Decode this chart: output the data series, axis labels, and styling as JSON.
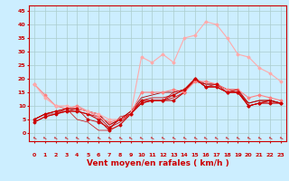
{
  "bg_color": "#cceeff",
  "grid_color": "#aacccc",
  "xlabel": "Vent moyen/en rafales ( km/h )",
  "xlabel_color": "#cc0000",
  "xlabel_fontsize": 6.5,
  "xtick_color": "#cc0000",
  "ytick_color": "#cc0000",
  "yticks": [
    0,
    5,
    10,
    15,
    20,
    25,
    30,
    35,
    40,
    45
  ],
  "xticks": [
    0,
    1,
    2,
    3,
    4,
    5,
    6,
    7,
    8,
    9,
    10,
    11,
    12,
    13,
    14,
    15,
    16,
    17,
    18,
    19,
    20,
    21,
    22,
    23
  ],
  "xlim": [
    -0.5,
    23.5
  ],
  "ylim": [
    -3,
    47
  ],
  "series": [
    {
      "x": [
        0,
        1,
        2,
        3,
        4,
        5,
        6,
        7,
        8,
        9,
        10,
        11,
        12,
        13,
        14,
        15,
        16,
        17,
        18,
        19,
        20,
        21,
        22,
        23
      ],
      "y": [
        4,
        6,
        7,
        8,
        8,
        7,
        5,
        1,
        3,
        7,
        11,
        12,
        12,
        12,
        15,
        20,
        17,
        17,
        15,
        15,
        10,
        11,
        12,
        11
      ],
      "color": "#cc0000",
      "marker": "D",
      "markersize": 1.5,
      "linewidth": 0.8
    },
    {
      "x": [
        0,
        1,
        2,
        3,
        4,
        5,
        6,
        7,
        8,
        9,
        10,
        11,
        12,
        13,
        14,
        15,
        16,
        17,
        18,
        19,
        20,
        21,
        22,
        23
      ],
      "y": [
        5,
        7,
        7,
        8,
        8,
        7,
        6,
        2,
        4,
        7,
        11,
        12,
        12,
        13,
        15,
        20,
        17,
        17,
        15,
        15,
        10,
        11,
        12,
        11
      ],
      "color": "#cc0000",
      "marker": null,
      "markersize": 1.5,
      "linewidth": 0.6
    },
    {
      "x": [
        0,
        1,
        2,
        3,
        4,
        5,
        6,
        7,
        8,
        9,
        10,
        11,
        12,
        13,
        14,
        15,
        16,
        17,
        18,
        19,
        20,
        21,
        22,
        23
      ],
      "y": [
        5,
        7,
        8,
        8,
        9,
        8,
        7,
        3,
        5,
        8,
        12,
        13,
        13,
        14,
        16,
        20,
        18,
        18,
        16,
        15,
        11,
        12,
        12,
        11
      ],
      "color": "#cc0000",
      "marker": null,
      "markersize": 1.5,
      "linewidth": 0.6
    },
    {
      "x": [
        0,
        1,
        2,
        3,
        4,
        5,
        6,
        7,
        8,
        9,
        10,
        11,
        12,
        13,
        14,
        15,
        16,
        17,
        18,
        19,
        20,
        21,
        22,
        23
      ],
      "y": [
        5,
        7,
        8,
        9,
        9,
        8,
        7,
        3,
        5,
        8,
        13,
        14,
        15,
        15,
        16,
        19,
        18,
        18,
        16,
        16,
        11,
        12,
        12,
        11
      ],
      "color": "#aa0000",
      "marker": null,
      "markersize": 1.5,
      "linewidth": 0.6
    },
    {
      "x": [
        0,
        1,
        2,
        3,
        4,
        5,
        6,
        7,
        8,
        9,
        10,
        11,
        12,
        13,
        14,
        15,
        16,
        17,
        18,
        19,
        20,
        21,
        22,
        23
      ],
      "y": [
        18,
        14,
        10,
        9,
        10,
        8,
        6,
        4,
        5,
        7,
        15,
        15,
        15,
        16,
        15,
        19,
        19,
        18,
        16,
        16,
        13,
        14,
        13,
        12
      ],
      "color": "#ff8080",
      "marker": "D",
      "markersize": 1.5,
      "linewidth": 0.8
    },
    {
      "x": [
        0,
        1,
        2,
        3,
        4,
        5,
        6,
        7,
        8,
        9,
        10,
        11,
        12,
        13,
        14,
        15,
        16,
        17,
        18,
        19,
        20,
        21,
        22,
        23
      ],
      "y": [
        18,
        13,
        10,
        10,
        9,
        8,
        7,
        5,
        5,
        7,
        28,
        26,
        29,
        26,
        35,
        36,
        41,
        40,
        35,
        29,
        28,
        24,
        22,
        19
      ],
      "color": "#ffaaaa",
      "marker": "D",
      "markersize": 1.5,
      "linewidth": 0.8
    },
    {
      "x": [
        0,
        1,
        2,
        3,
        4,
        5,
        6,
        7,
        8,
        9,
        10,
        11,
        12,
        13,
        14,
        15,
        16,
        17,
        18,
        19,
        20,
        21,
        22,
        23
      ],
      "y": [
        5,
        7,
        8,
        9,
        9,
        5,
        4,
        2,
        5,
        7,
        12,
        12,
        12,
        14,
        16,
        20,
        17,
        18,
        15,
        15,
        10,
        11,
        11,
        11
      ],
      "color": "#cc0000",
      "marker": "D",
      "markersize": 1.5,
      "linewidth": 0.6
    },
    {
      "x": [
        0,
        1,
        2,
        3,
        4,
        5,
        6,
        7,
        8,
        9,
        10,
        11,
        12,
        13,
        14,
        15,
        16,
        17,
        18,
        19,
        20,
        21,
        22,
        23
      ],
      "y": [
        4,
        6,
        7,
        9,
        5,
        4,
        1,
        1,
        6,
        7,
        12,
        12,
        12,
        15,
        16,
        20,
        17,
        17,
        15,
        16,
        10,
        11,
        11,
        11
      ],
      "color": "#cc0000",
      "marker": null,
      "markersize": 1.5,
      "linewidth": 0.5
    }
  ]
}
